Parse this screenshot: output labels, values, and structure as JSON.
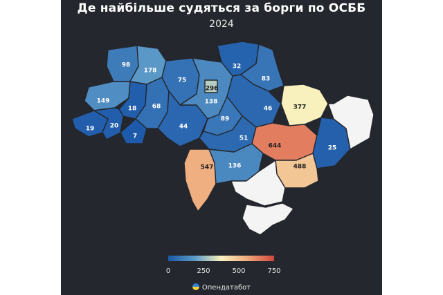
{
  "header": {
    "title": "Де найбільше судяться за борги по ОСББ",
    "subtitle": "2024"
  },
  "legend": {
    "ticks": [
      "0",
      "250",
      "500",
      "750"
    ],
    "tick_values": [
      0,
      250,
      500,
      750
    ],
    "min": 0,
    "max": 750,
    "stops": [
      "#1b57a8",
      "#5c9bc9",
      "#f8f2bf",
      "#efa97a",
      "#d0473d"
    ]
  },
  "colors": {
    "background": "#24272d",
    "no_data": "#f4f4f4"
  },
  "brand": {
    "name": "Опендатабот",
    "icon": "ukraine-flag-circle-icon"
  },
  "regions": [
    {
      "id": "volyn",
      "value": 98
    },
    {
      "id": "rivne",
      "value": 178
    },
    {
      "id": "lviv",
      "value": 149
    },
    {
      "id": "ternopil",
      "value": 18
    },
    {
      "id": "zakarpattia",
      "value": 19
    },
    {
      "id": "ivano-frankivsk",
      "value": 20
    },
    {
      "id": "chernivtsi",
      "value": 7
    },
    {
      "id": "khmelnytskyi",
      "value": 68
    },
    {
      "id": "zhytomyr",
      "value": 75
    },
    {
      "id": "vinnytsia",
      "value": 44
    },
    {
      "id": "kyiv-oblast",
      "value": 138
    },
    {
      "id": "kyiv-city",
      "value": 296
    },
    {
      "id": "chernihiv",
      "value": 32
    },
    {
      "id": "sumy",
      "value": 83
    },
    {
      "id": "poltava",
      "value": 46
    },
    {
      "id": "cherkasy",
      "value": 89
    },
    {
      "id": "kirovohrad",
      "value": 51
    },
    {
      "id": "kharkiv",
      "value": 377
    },
    {
      "id": "dnipropetrovsk",
      "value": 644
    },
    {
      "id": "donetsk",
      "value": 25
    },
    {
      "id": "zaporizhzhia",
      "value": 488
    },
    {
      "id": "odesa",
      "value": 547
    },
    {
      "id": "mykolaiv",
      "value": 136
    },
    {
      "id": "kherson",
      "value": null
    },
    {
      "id": "luhansk",
      "value": null
    },
    {
      "id": "crimea",
      "value": null
    }
  ]
}
